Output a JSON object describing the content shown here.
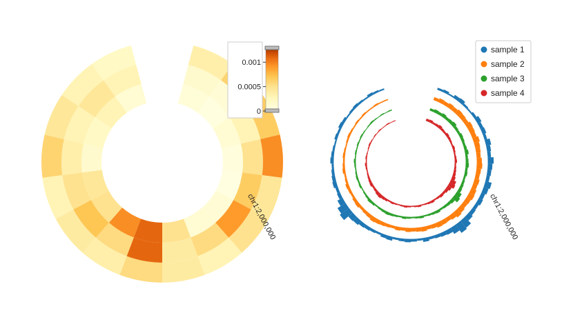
{
  "chart_data": [
    {
      "type": "heatmap",
      "subtype": "circular",
      "title": "",
      "genome_label": "chr1:2,000,000",
      "rows": 3,
      "bins": 16,
      "gap": "top, clockwise start after gap",
      "values": [
        [
          8e-05,
          4e-05,
          0.00012,
          6e-05,
          3e-05,
          0.0001,
          0.00012,
          0.0005,
          0.0011,
          0.00095,
          0.0005,
          0.00045,
          0.00015,
          0.0002,
          0.0003,
          0.00012
        ],
        [
          0.00015,
          0.0001,
          0.0003,
          0.0005,
          0.00065,
          0.0009,
          0.00055,
          0.0004,
          0.0011,
          0.00055,
          0.0007,
          0.0005,
          0.00035,
          0.0003,
          0.00045,
          0.0003
        ],
        [
          0.00035,
          0.0006,
          0.00065,
          0.00095,
          0.00045,
          0.0005,
          0.0003,
          0.0004,
          0.00055,
          0.00035,
          0.0004,
          0.0003,
          0.0006,
          0.00045,
          0.0003,
          0.0002
        ]
      ],
      "colorbar": {
        "cmap": "YlOrBr",
        "range": [
          0,
          0.0013
        ],
        "ticks": [
          0,
          0.0005,
          0.001
        ],
        "tick_labels": [
          "0",
          "0.0005",
          "0.001"
        ]
      }
    },
    {
      "type": "bar",
      "subtype": "circular histogram",
      "title": "",
      "genome_label": "chr1:2,000,000",
      "bins": 72,
      "series": [
        {
          "name": "sample 1",
          "color": "#1f77b4",
          "values": [
            0.3,
            0.4,
            0.2,
            0.5,
            0.6,
            0.3,
            0.2,
            0.4,
            0.7,
            0.5,
            0.6,
            0.4,
            0.8,
            0.6,
            0.5,
            0.9,
            0.7,
            0.6,
            0.5,
            1.0,
            0.8,
            0.6,
            0.7,
            0.5,
            0.6,
            0.8,
            1.4,
            1.6,
            1.1,
            0.7,
            0.6,
            0.5,
            0.4,
            0.6,
            0.3,
            0.4,
            0.5,
            0.4,
            0.3,
            0.6,
            0.5,
            0.3,
            0.4,
            0.5,
            0.6,
            0.8,
            0.9,
            1.8,
            1.5,
            0.9,
            0.5,
            0.4,
            0.6,
            0.5,
            0.4,
            0.3,
            0.5,
            0.4,
            0.3,
            0.2,
            0.4,
            0.3,
            0.5,
            0.4,
            0.2,
            0.3,
            0.4,
            0.3,
            0.2,
            0.4,
            0.3,
            0.2
          ]
        },
        {
          "name": "sample 2",
          "color": "#ff7f0e",
          "values": [
            0.6,
            0.8,
            0.7,
            0.9,
            0.8,
            1.0,
            0.9,
            0.8,
            1.1,
            1.0,
            0.9,
            1.2,
            1.0,
            0.9,
            0.8,
            1.0,
            1.1,
            0.9,
            0.8,
            1.0,
            0.9,
            1.1,
            1.2,
            1.0,
            0.9,
            1.1,
            1.3,
            1.0,
            0.8,
            0.9,
            1.0,
            0.8,
            0.7,
            0.9,
            0.8,
            0.7,
            0.8,
            0.6,
            0.7,
            0.5,
            0.6,
            0.7,
            0.8,
            0.9,
            0.7,
            0.6,
            0.5,
            0.7,
            0.6,
            0.4,
            0.5,
            0.6,
            0.4,
            0.3,
            0.5,
            0.4,
            0.3,
            0.4,
            0.3,
            0.2,
            0.3,
            0.4,
            0.3,
            0.2,
            0.3,
            0.2,
            0.3,
            0.2,
            0.2,
            0.3,
            0.2,
            0.2
          ]
        },
        {
          "name": "sample 3",
          "color": "#2ca02c",
          "values": [
            0.5,
            0.7,
            0.6,
            0.8,
            0.6,
            0.7,
            0.9,
            0.6,
            0.5,
            0.7,
            0.6,
            0.5,
            0.6,
            0.8,
            0.5,
            0.6,
            0.7,
            0.5,
            0.6,
            0.4,
            0.5,
            0.6,
            0.7,
            1.2,
            1.5,
            0.8,
            0.6,
            0.5,
            0.4,
            0.6,
            0.5,
            0.4,
            0.3,
            0.5,
            0.4,
            0.3,
            0.4,
            0.5,
            0.3,
            0.4,
            0.5,
            0.6,
            0.5,
            0.4,
            0.3,
            0.5,
            0.6,
            0.4,
            0.3,
            0.2,
            0.4,
            0.3,
            0.4,
            0.3,
            0.2,
            0.3,
            0.4,
            0.2,
            0.3,
            0.2,
            0.3,
            0.2,
            0.3,
            0.2,
            0.1,
            0.2,
            0.3,
            0.2,
            0.1,
            0.2,
            0.1,
            0.2
          ]
        },
        {
          "name": "sample 4",
          "color": "#d62728",
          "values": [
            0.5,
            0.6,
            0.4,
            0.5,
            0.7,
            0.5,
            0.4,
            0.6,
            0.5,
            0.4,
            0.3,
            0.5,
            0.4,
            0.3,
            0.4,
            0.5,
            0.3,
            0.4,
            0.5,
            0.6,
            0.8,
            1.3,
            1.5,
            1.0,
            0.7,
            0.5,
            0.6,
            0.4,
            0.3,
            0.5,
            0.4,
            0.3,
            0.2,
            0.4,
            0.3,
            0.2,
            0.3,
            0.4,
            0.3,
            0.2,
            0.3,
            0.4,
            0.3,
            0.5,
            0.6,
            0.8,
            0.7,
            0.5,
            0.4,
            0.6,
            0.5,
            0.4,
            0.3,
            0.2,
            0.3,
            0.4,
            0.2,
            0.3,
            0.2,
            0.1,
            0.2,
            0.3,
            0.2,
            0.1,
            0.2,
            0.1,
            0.2,
            0.1,
            0.1,
            0.2,
            0.1,
            0.1
          ]
        }
      ],
      "legend": {
        "placement": "top-right"
      }
    }
  ]
}
